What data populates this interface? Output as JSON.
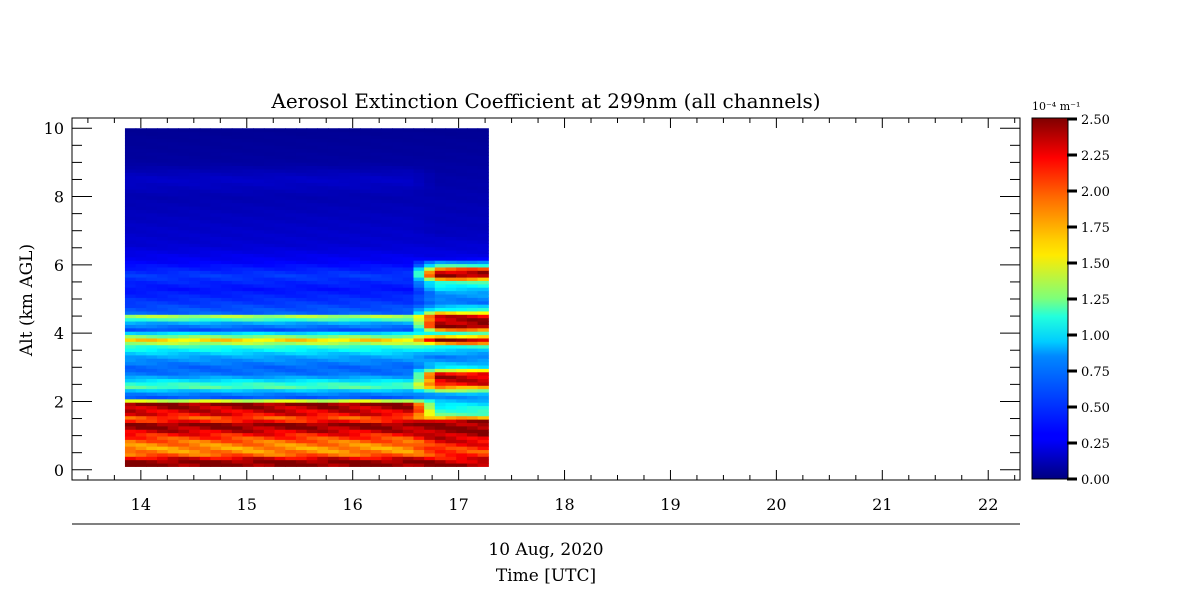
{
  "chart_data": {
    "type": "heatmap",
    "title": "Aerosol Extinction Coefficient at 299nm (all channels)",
    "xlabel": "Time [UTC]",
    "date_label": "10 Aug, 2020",
    "ylabel": "Alt (km AGL)",
    "x_range": [
      13.35,
      22.3
    ],
    "y_range": [
      -0.3,
      10.3
    ],
    "x_ticks": [
      14,
      15,
      16,
      17,
      18,
      19,
      20,
      21,
      22
    ],
    "y_ticks": [
      0,
      2,
      4,
      6,
      8,
      10
    ],
    "data_extent": {
      "x": [
        13.85,
        17.28
      ],
      "y": [
        0.1,
        10.0
      ]
    },
    "colorbar": {
      "unit_label": "10⁻⁴ m⁻¹",
      "range": [
        0.0,
        2.5
      ],
      "ticks": [
        "2.50",
        "2.25",
        "2.00",
        "1.75",
        "1.50",
        "1.25",
        "1.00",
        "0.75",
        "0.50",
        "0.25",
        "0.00"
      ],
      "colormap": "jet"
    },
    "profile_main": [
      [
        0.1,
        2.5
      ],
      [
        0.3,
        2.5
      ],
      [
        0.4,
        2.0
      ],
      [
        0.6,
        1.8
      ],
      [
        0.8,
        1.9
      ],
      [
        1.0,
        2.1
      ],
      [
        1.2,
        2.4
      ],
      [
        1.35,
        2.5
      ],
      [
        1.5,
        1.9
      ],
      [
        1.6,
        2.2
      ],
      [
        1.8,
        2.35
      ],
      [
        1.95,
        2.5
      ],
      [
        2.1,
        0.5
      ],
      [
        2.3,
        0.7
      ],
      [
        2.45,
        1.2
      ],
      [
        2.6,
        0.9
      ],
      [
        2.8,
        0.6
      ],
      [
        3.0,
        0.55
      ],
      [
        3.3,
        0.7
      ],
      [
        3.5,
        0.9
      ],
      [
        3.65,
        1.1
      ],
      [
        3.8,
        1.7
      ],
      [
        3.95,
        1.1
      ],
      [
        4.1,
        0.5
      ],
      [
        4.3,
        0.7
      ],
      [
        4.5,
        1.4
      ],
      [
        4.6,
        0.55
      ],
      [
        4.9,
        0.45
      ],
      [
        5.3,
        0.35
      ],
      [
        5.7,
        0.45
      ],
      [
        6.1,
        0.3
      ],
      [
        6.6,
        0.2
      ],
      [
        7.0,
        0.18
      ],
      [
        7.5,
        0.15
      ],
      [
        8.0,
        0.12
      ],
      [
        8.5,
        0.18
      ],
      [
        9.0,
        0.08
      ],
      [
        10.0,
        0.05
      ]
    ],
    "profile_late": [
      [
        0.1,
        2.5
      ],
      [
        0.3,
        2.3
      ],
      [
        0.5,
        2.0
      ],
      [
        0.8,
        2.2
      ],
      [
        1.0,
        2.35
      ],
      [
        1.2,
        2.5
      ],
      [
        1.45,
        2.4
      ],
      [
        1.6,
        1.2
      ],
      [
        1.8,
        1.0
      ],
      [
        2.0,
        0.8
      ],
      [
        2.2,
        0.6
      ],
      [
        2.5,
        2.2
      ],
      [
        2.8,
        2.4
      ],
      [
        3.0,
        0.9
      ],
      [
        3.3,
        0.6
      ],
      [
        3.6,
        0.9
      ],
      [
        3.8,
        2.5
      ],
      [
        4.0,
        1.0
      ],
      [
        4.2,
        2.5
      ],
      [
        4.5,
        2.3
      ],
      [
        4.7,
        1.0
      ],
      [
        4.9,
        0.6
      ],
      [
        5.2,
        0.7
      ],
      [
        5.5,
        1.1
      ],
      [
        5.7,
        2.5
      ],
      [
        5.85,
        2.3
      ],
      [
        6.0,
        1.0
      ],
      [
        6.2,
        0.25
      ],
      [
        6.6,
        0.2
      ],
      [
        7.0,
        0.15
      ],
      [
        8.0,
        0.12
      ],
      [
        9.0,
        0.08
      ],
      [
        10.0,
        0.05
      ]
    ]
  }
}
